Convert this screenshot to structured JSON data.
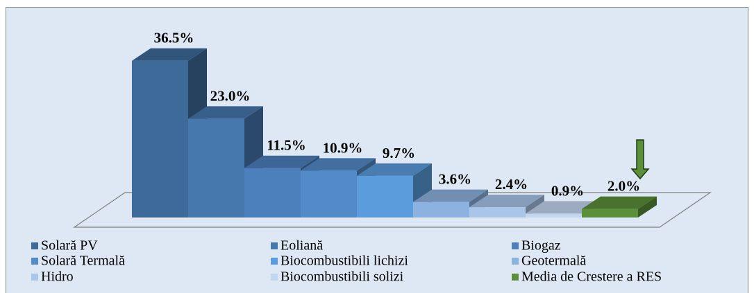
{
  "chart_data": {
    "type": "bar",
    "categories": [
      "Solară PV",
      "Eoliană",
      "Biogaz",
      "Solară Termală",
      "Biocombustibili lichizi",
      "Geotermală",
      "Hidro",
      "Biocombustibili solizi",
      "Media de Crestere a RES"
    ],
    "values": [
      36.5,
      23.0,
      11.5,
      10.9,
      9.7,
      3.6,
      2.4,
      0.9,
      2.0
    ],
    "value_labels": [
      "36.5%",
      "23.0%",
      "11.5%",
      "10.9%",
      "9.7%",
      "3.6%",
      "2.4%",
      "0.9%",
      "2.0%"
    ],
    "colors": [
      "#3d6a98",
      "#4677ad",
      "#4b80bc",
      "#528bc8",
      "#5b9cdc",
      "#8cb3df",
      "#a9c5e8",
      "#c3d6ef",
      "#5b8f3a"
    ],
    "legend": "bottom"
  }
}
